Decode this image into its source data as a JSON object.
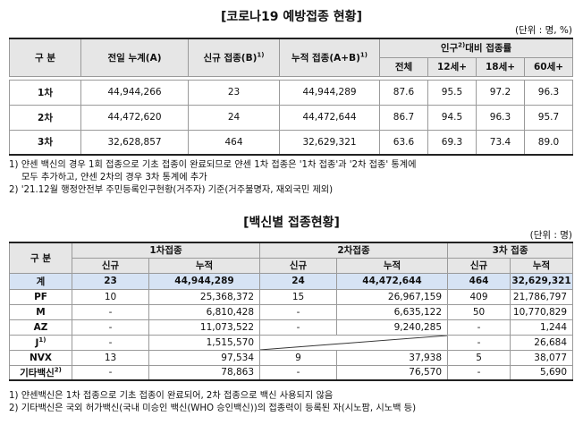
{
  "table1": {
    "title": "[코로나19 예방접종 현황]",
    "unit": "(단위 : 명, %)",
    "headers": {
      "division": "구 분",
      "prev_cumulative": "전일 누계(A)",
      "new": "신규 접종(B)",
      "new_sup": "1)",
      "cumulative": "누적 접종(A+B)",
      "cumulative_sup": "1)",
      "ratio_group": "인구",
      "ratio_sup": "2)",
      "ratio_group_rest": "대비 접종률",
      "all": "전체",
      "age12": "12세+",
      "age18": "18세+",
      "age60": "60세+"
    },
    "rows": [
      {
        "label": "1차",
        "prev": "44,944,266",
        "new": "23",
        "cum": "44,944,289",
        "all": "87.6",
        "a12": "95.5",
        "a18": "97.2",
        "a60": "96.3"
      },
      {
        "label": "2차",
        "prev": "44,472,620",
        "new": "24",
        "cum": "44,472,644",
        "all": "86.7",
        "a12": "94.5",
        "a18": "96.3",
        "a60": "95.7"
      },
      {
        "label": "3차",
        "prev": "32,628,857",
        "new": "464",
        "cum": "32,629,321",
        "all": "63.6",
        "a12": "69.3",
        "a18": "73.4",
        "a60": "89.0"
      }
    ],
    "notes": [
      "1) 얀센 백신의 경우 1회 접종으로 기초 접종이 완료되므로 얀센 1차 접종은 '1차 접종'과 '2차 접종' 통계에",
      "모두 추가하고, 얀센 2차의 경우 3차 통계에 추가",
      "2) '21.12월 행정안전부 주민등록인구현황(거주자) 기준(거주불명자, 재외국민 제외)"
    ]
  },
  "table2": {
    "title": "[백신별 접종현황]",
    "unit": "(단위 : 명)",
    "headers": {
      "division": "구 분",
      "dose1": "1차접종",
      "dose2": "2차접종",
      "dose3": "3차 접종",
      "new": "신규",
      "cum": "누적"
    },
    "rows": [
      {
        "label": "계",
        "d1n": "23",
        "d1c": "44,944,289",
        "d2n": "24",
        "d2c": "44,472,644",
        "d3n": "464",
        "d3c": "32,629,321"
      },
      {
        "label": "PF",
        "d1n": "10",
        "d1c": "25,368,372",
        "d2n": "15",
        "d2c": "26,967,159",
        "d3n": "409",
        "d3c": "21,786,797"
      },
      {
        "label": "M",
        "d1n": "-",
        "d1c": "6,810,428",
        "d2n": "-",
        "d2c": "6,635,122",
        "d3n": "50",
        "d3c": "10,770,829"
      },
      {
        "label": "AZ",
        "d1n": "-",
        "d1c": "11,073,522",
        "d2n": "-",
        "d2c": "9,240,285",
        "d3n": "-",
        "d3c": "1,244"
      },
      {
        "label": "J",
        "sup": "1)",
        "d1n": "-",
        "d1c": "1,515,570",
        "d2n": "",
        "d2c": "",
        "d3n": "-",
        "d3c": "26,684"
      },
      {
        "label": "NVX",
        "d1n": "13",
        "d1c": "97,534",
        "d2n": "9",
        "d2c": "37,938",
        "d3n": "5",
        "d3c": "38,077"
      },
      {
        "label": "기타백신",
        "sup": "2)",
        "d1n": "-",
        "d1c": "78,863",
        "d2n": "-",
        "d2c": "76,570",
        "d3n": "-",
        "d3c": "5,690"
      }
    ],
    "notes": [
      "1) 얀센백신은 1차 접종으로 기초 접종이 완료되어, 2차 접종으로 백신 사용되지 않음",
      "2) 기타백신은 국외 허가백신(국내 미승인 백신(WHO 승인백신))의 접종력이 등록된 자(시노팜, 시노백 등)"
    ]
  }
}
